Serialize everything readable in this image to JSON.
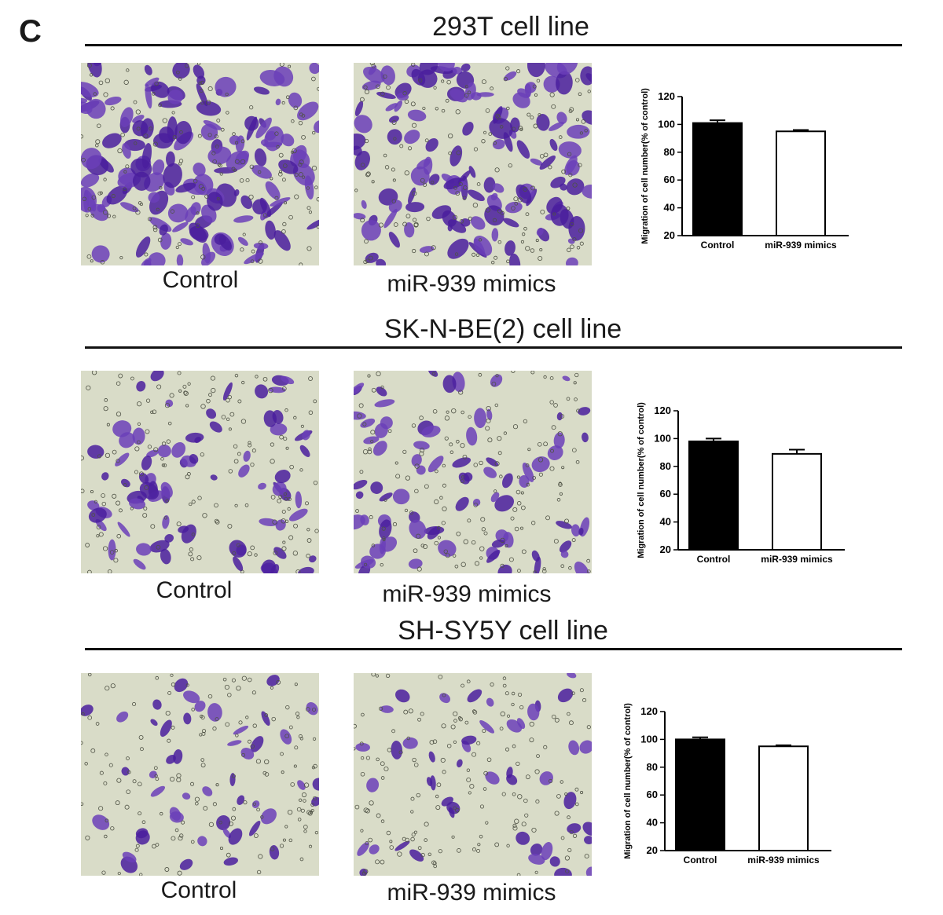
{
  "panel_label": "C",
  "sections": [
    {
      "title": "293T cell line",
      "image_labels": [
        "Control",
        "miR-939 mimics"
      ]
    },
    {
      "title": "SK-N-BE(2) cell line",
      "image_labels": [
        "Control",
        "miR-939 mimics"
      ]
    },
    {
      "title": "SH-SY5Y cell line",
      "image_labels": [
        "Control",
        "miR-939 mimics"
      ]
    }
  ],
  "colors": {
    "stain_dense": "#4a1f9e",
    "stain_mid": "#6b3fb8",
    "background": "#d9dcc8",
    "bar_control": "#000000",
    "bar_mimics": "#ffffff"
  },
  "chart_data": [
    {
      "type": "bar",
      "title": "",
      "categories": [
        "Control",
        "miR-939 mimics"
      ],
      "values": [
        101,
        95
      ],
      "errors": [
        2,
        1
      ],
      "xlabel": "",
      "ylabel": "Migration of cell number(% of control)",
      "ylim": [
        20,
        120
      ],
      "yticks": [
        20,
        40,
        60,
        80,
        100,
        120
      ]
    },
    {
      "type": "bar",
      "title": "",
      "categories": [
        "Control",
        "miR-939 mimics"
      ],
      "values": [
        98,
        89
      ],
      "errors": [
        2,
        3
      ],
      "xlabel": "",
      "ylabel": "Migration of cell number(% of control)",
      "ylim": [
        20,
        120
      ],
      "yticks": [
        20,
        40,
        60,
        80,
        100,
        120
      ]
    },
    {
      "type": "bar",
      "title": "",
      "categories": [
        "Control",
        "miR-939 mimics"
      ],
      "values": [
        100,
        95
      ],
      "errors": [
        1.5,
        0.8
      ],
      "xlabel": "",
      "ylabel": "Migration of cell number(% of control)",
      "ylim": [
        20,
        120
      ],
      "yticks": [
        20,
        40,
        60,
        80,
        100,
        120
      ]
    }
  ]
}
